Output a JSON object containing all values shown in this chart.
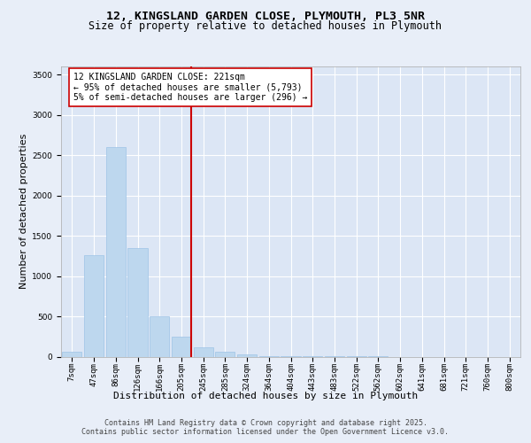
{
  "title_line1": "12, KINGSLAND GARDEN CLOSE, PLYMOUTH, PL3 5NR",
  "title_line2": "Size of property relative to detached houses in Plymouth",
  "xlabel": "Distribution of detached houses by size in Plymouth",
  "ylabel": "Number of detached properties",
  "categories": [
    "7sqm",
    "47sqm",
    "86sqm",
    "126sqm",
    "166sqm",
    "205sqm",
    "245sqm",
    "285sqm",
    "324sqm",
    "364sqm",
    "404sqm",
    "443sqm",
    "483sqm",
    "522sqm",
    "562sqm",
    "602sqm",
    "641sqm",
    "681sqm",
    "721sqm",
    "760sqm",
    "800sqm"
  ],
  "values": [
    55,
    1260,
    2600,
    1350,
    500,
    250,
    120,
    55,
    30,
    10,
    5,
    3,
    2,
    1,
    1,
    0,
    0,
    0,
    0,
    0,
    0
  ],
  "bar_color": "#bdd7ee",
  "bar_edge_color": "#9dc3e6",
  "vline_color": "#cc0000",
  "annotation_text_line1": "12 KINGSLAND GARDEN CLOSE: 221sqm",
  "annotation_text_line2": "← 95% of detached houses are smaller (5,793)",
  "annotation_text_line3": "5% of semi-detached houses are larger (296) →",
  "ylim": [
    0,
    3600
  ],
  "yticks": [
    0,
    500,
    1000,
    1500,
    2000,
    2500,
    3000,
    3500
  ],
  "background_color": "#dce6f5",
  "grid_color": "#ffffff",
  "footer_line1": "Contains HM Land Registry data © Crown copyright and database right 2025.",
  "footer_line2": "Contains public sector information licensed under the Open Government Licence v3.0.",
  "title_fontsize": 9.5,
  "subtitle_fontsize": 8.5,
  "axis_label_fontsize": 8,
  "tick_fontsize": 6.5,
  "annotation_fontsize": 7,
  "footer_fontsize": 6
}
